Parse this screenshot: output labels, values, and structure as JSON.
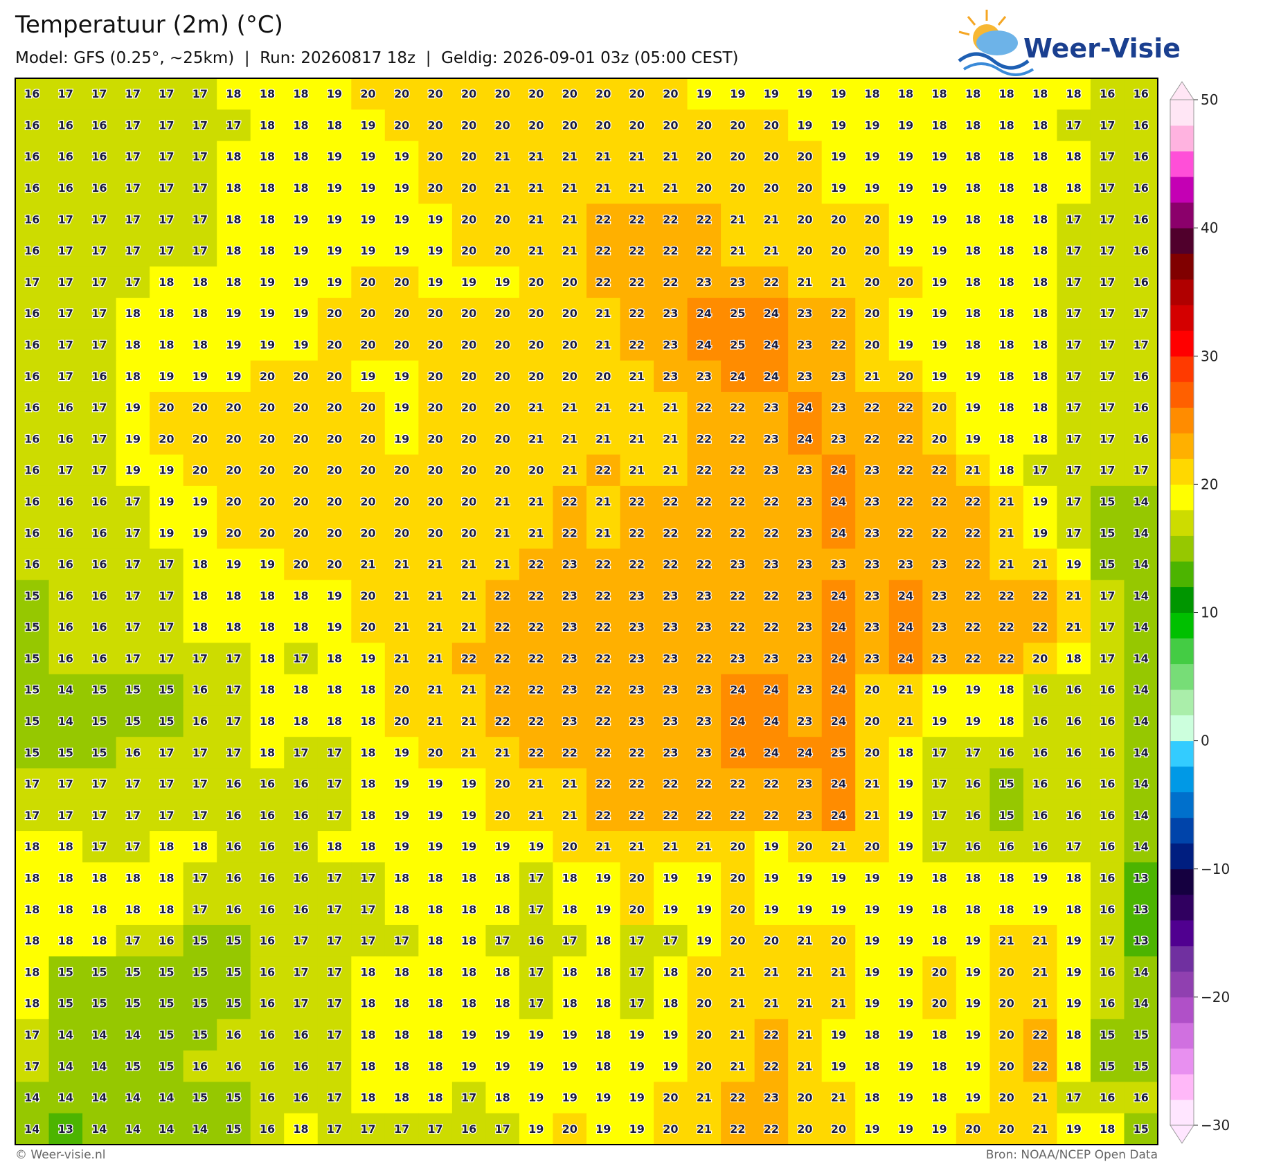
{
  "header": {
    "title": "Temperatuur (2m) (°C)",
    "subtitle": "Model: GFS (0.25°, ~25km)  |  Run: 20260817 18z  |  Geldig: 2026-09-01 03z (05:00 CEST)",
    "logo": "Weer-Visie"
  },
  "grid": {
    "rows": [
      [
        16,
        17,
        17,
        17,
        17,
        17,
        18,
        18,
        18,
        19,
        20,
        20,
        20,
        20,
        20,
        20,
        20,
        20,
        20,
        20,
        19,
        19,
        19,
        19,
        19,
        18,
        18,
        18,
        18,
        18,
        18,
        18,
        16,
        16
      ],
      [
        16,
        16,
        16,
        17,
        17,
        17,
        17,
        18,
        18,
        18,
        19,
        20,
        20,
        20,
        20,
        20,
        20,
        20,
        20,
        20,
        20,
        20,
        20,
        19,
        19,
        19,
        19,
        18,
        18,
        18,
        18,
        17,
        17,
        16
      ],
      [
        16,
        16,
        16,
        17,
        17,
        17,
        18,
        18,
        18,
        19,
        19,
        19,
        20,
        20,
        21,
        21,
        21,
        21,
        21,
        21,
        20,
        20,
        20,
        20,
        19,
        19,
        19,
        19,
        18,
        18,
        18,
        18,
        17,
        16
      ],
      [
        16,
        16,
        16,
        17,
        17,
        17,
        18,
        18,
        18,
        19,
        19,
        19,
        20,
        20,
        21,
        21,
        21,
        21,
        21,
        21,
        20,
        20,
        20,
        20,
        19,
        19,
        19,
        19,
        18,
        18,
        18,
        18,
        17,
        16
      ],
      [
        16,
        17,
        17,
        17,
        17,
        17,
        18,
        18,
        19,
        19,
        19,
        19,
        19,
        20,
        20,
        21,
        21,
        22,
        22,
        22,
        22,
        21,
        21,
        20,
        20,
        20,
        19,
        19,
        18,
        18,
        18,
        17,
        17,
        16
      ],
      [
        16,
        17,
        17,
        17,
        17,
        17,
        18,
        18,
        19,
        19,
        19,
        19,
        19,
        20,
        20,
        21,
        21,
        22,
        22,
        22,
        22,
        21,
        21,
        20,
        20,
        20,
        19,
        19,
        18,
        18,
        18,
        17,
        17,
        16
      ],
      [
        17,
        17,
        17,
        17,
        18,
        18,
        18,
        19,
        19,
        19,
        20,
        20,
        19,
        19,
        19,
        20,
        20,
        22,
        22,
        22,
        23,
        23,
        22,
        21,
        21,
        20,
        20,
        19,
        18,
        18,
        18,
        17,
        17,
        16
      ],
      [
        16,
        17,
        17,
        18,
        18,
        18,
        19,
        19,
        19,
        20,
        20,
        20,
        20,
        20,
        20,
        20,
        20,
        21,
        22,
        23,
        24,
        25,
        24,
        23,
        22,
        20,
        19,
        19,
        18,
        18,
        18,
        17,
        17,
        17
      ],
      [
        16,
        17,
        17,
        18,
        18,
        18,
        19,
        19,
        19,
        20,
        20,
        20,
        20,
        20,
        20,
        20,
        20,
        21,
        22,
        23,
        24,
        25,
        24,
        23,
        22,
        20,
        19,
        19,
        18,
        18,
        18,
        17,
        17,
        17
      ],
      [
        16,
        17,
        16,
        18,
        19,
        19,
        19,
        20,
        20,
        20,
        19,
        19,
        20,
        20,
        20,
        20,
        20,
        20,
        21,
        23,
        23,
        24,
        24,
        23,
        23,
        21,
        20,
        19,
        19,
        18,
        18,
        17,
        17,
        16
      ],
      [
        16,
        16,
        17,
        19,
        20,
        20,
        20,
        20,
        20,
        20,
        20,
        19,
        20,
        20,
        20,
        21,
        21,
        21,
        21,
        21,
        22,
        22,
        23,
        24,
        23,
        22,
        22,
        20,
        19,
        18,
        18,
        17,
        17,
        16
      ],
      [
        16,
        16,
        17,
        19,
        20,
        20,
        20,
        20,
        20,
        20,
        20,
        19,
        20,
        20,
        20,
        21,
        21,
        21,
        21,
        21,
        22,
        22,
        23,
        24,
        23,
        22,
        22,
        20,
        19,
        18,
        18,
        17,
        17,
        16
      ],
      [
        16,
        17,
        17,
        19,
        19,
        20,
        20,
        20,
        20,
        20,
        20,
        20,
        20,
        20,
        20,
        20,
        21,
        22,
        21,
        21,
        22,
        22,
        23,
        23,
        24,
        23,
        22,
        22,
        21,
        18,
        17,
        17,
        17,
        17
      ],
      [
        16,
        16,
        16,
        17,
        19,
        19,
        20,
        20,
        20,
        20,
        20,
        20,
        20,
        20,
        21,
        21,
        22,
        21,
        22,
        22,
        22,
        22,
        22,
        23,
        24,
        23,
        22,
        22,
        22,
        21,
        19,
        17,
        15,
        14
      ],
      [
        16,
        16,
        16,
        17,
        19,
        19,
        20,
        20,
        20,
        20,
        20,
        20,
        20,
        20,
        21,
        21,
        22,
        21,
        22,
        22,
        22,
        22,
        22,
        23,
        24,
        23,
        22,
        22,
        22,
        21,
        19,
        17,
        15,
        14
      ],
      [
        16,
        16,
        16,
        17,
        17,
        18,
        19,
        19,
        20,
        20,
        21,
        21,
        21,
        21,
        21,
        22,
        23,
        22,
        22,
        22,
        22,
        23,
        23,
        23,
        23,
        23,
        23,
        23,
        22,
        21,
        21,
        19,
        15,
        14
      ],
      [
        15,
        16,
        16,
        17,
        17,
        18,
        18,
        18,
        18,
        19,
        20,
        21,
        21,
        21,
        22,
        22,
        23,
        22,
        23,
        23,
        23,
        22,
        22,
        23,
        24,
        23,
        24,
        23,
        22,
        22,
        22,
        21,
        17,
        14
      ],
      [
        15,
        16,
        16,
        17,
        17,
        18,
        18,
        18,
        18,
        19,
        20,
        21,
        21,
        21,
        22,
        22,
        23,
        22,
        23,
        23,
        23,
        22,
        22,
        23,
        24,
        23,
        24,
        23,
        22,
        22,
        22,
        21,
        17,
        14
      ],
      [
        15,
        16,
        16,
        17,
        17,
        17,
        17,
        18,
        17,
        18,
        19,
        21,
        21,
        22,
        22,
        22,
        23,
        22,
        23,
        23,
        22,
        23,
        23,
        23,
        24,
        23,
        24,
        23,
        22,
        22,
        20,
        18,
        17,
        14
      ],
      [
        15,
        14,
        15,
        15,
        15,
        16,
        17,
        18,
        18,
        18,
        18,
        20,
        21,
        21,
        22,
        22,
        23,
        22,
        23,
        23,
        23,
        24,
        24,
        23,
        24,
        20,
        21,
        19,
        19,
        18,
        16,
        16,
        16,
        14
      ],
      [
        15,
        14,
        15,
        15,
        15,
        16,
        17,
        18,
        18,
        18,
        18,
        20,
        21,
        21,
        22,
        22,
        23,
        22,
        23,
        23,
        23,
        24,
        24,
        23,
        24,
        20,
        21,
        19,
        19,
        18,
        16,
        16,
        16,
        14
      ],
      [
        15,
        15,
        15,
        16,
        17,
        17,
        17,
        18,
        17,
        17,
        18,
        19,
        20,
        21,
        21,
        22,
        22,
        22,
        22,
        23,
        23,
        24,
        24,
        24,
        25,
        20,
        18,
        17,
        17,
        16,
        16,
        16,
        16,
        14
      ],
      [
        17,
        17,
        17,
        17,
        17,
        17,
        16,
        16,
        16,
        17,
        18,
        19,
        19,
        19,
        20,
        21,
        21,
        22,
        22,
        22,
        22,
        22,
        22,
        23,
        24,
        21,
        19,
        17,
        16,
        15,
        16,
        16,
        16,
        14
      ],
      [
        17,
        17,
        17,
        17,
        17,
        17,
        16,
        16,
        16,
        17,
        18,
        19,
        19,
        19,
        20,
        21,
        21,
        22,
        22,
        22,
        22,
        22,
        22,
        23,
        24,
        21,
        19,
        17,
        16,
        15,
        16,
        16,
        16,
        14
      ],
      [
        18,
        18,
        17,
        17,
        18,
        18,
        16,
        16,
        16,
        18,
        18,
        19,
        19,
        19,
        19,
        19,
        20,
        21,
        21,
        21,
        21,
        20,
        19,
        20,
        21,
        20,
        19,
        17,
        16,
        16,
        16,
        17,
        16,
        14
      ],
      [
        18,
        18,
        18,
        18,
        18,
        17,
        16,
        16,
        16,
        17,
        17,
        18,
        18,
        18,
        18,
        17,
        18,
        19,
        20,
        19,
        19,
        20,
        19,
        19,
        19,
        19,
        19,
        18,
        18,
        18,
        19,
        18,
        16,
        13
      ],
      [
        18,
        18,
        18,
        18,
        18,
        17,
        16,
        16,
        16,
        17,
        17,
        18,
        18,
        18,
        18,
        17,
        18,
        19,
        20,
        19,
        19,
        20,
        19,
        19,
        19,
        19,
        19,
        18,
        18,
        18,
        19,
        18,
        16,
        13
      ],
      [
        18,
        18,
        18,
        17,
        16,
        15,
        15,
        16,
        17,
        17,
        17,
        17,
        18,
        18,
        17,
        16,
        17,
        18,
        17,
        17,
        19,
        20,
        20,
        21,
        20,
        19,
        19,
        18,
        19,
        21,
        21,
        19,
        17,
        13
      ],
      [
        18,
        15,
        15,
        15,
        15,
        15,
        15,
        16,
        17,
        17,
        18,
        18,
        18,
        18,
        18,
        17,
        18,
        18,
        17,
        18,
        20,
        21,
        21,
        21,
        21,
        19,
        19,
        20,
        19,
        20,
        21,
        19,
        16,
        14
      ],
      [
        18,
        15,
        15,
        15,
        15,
        15,
        15,
        16,
        17,
        17,
        18,
        18,
        18,
        18,
        18,
        17,
        18,
        18,
        17,
        18,
        20,
        21,
        21,
        21,
        21,
        19,
        19,
        20,
        19,
        20,
        21,
        19,
        16,
        14
      ],
      [
        17,
        14,
        14,
        14,
        15,
        15,
        16,
        16,
        16,
        17,
        18,
        18,
        18,
        19,
        19,
        19,
        19,
        18,
        19,
        19,
        20,
        21,
        22,
        21,
        19,
        18,
        19,
        18,
        19,
        20,
        22,
        18,
        15,
        15
      ],
      [
        17,
        14,
        14,
        15,
        15,
        16,
        16,
        16,
        16,
        17,
        18,
        18,
        18,
        19,
        19,
        19,
        19,
        18,
        19,
        19,
        20,
        21,
        22,
        21,
        19,
        18,
        19,
        18,
        19,
        20,
        22,
        18,
        15,
        15
      ],
      [
        14,
        14,
        14,
        14,
        14,
        15,
        15,
        16,
        16,
        17,
        18,
        18,
        18,
        17,
        18,
        19,
        19,
        19,
        19,
        20,
        21,
        22,
        23,
        20,
        21,
        18,
        19,
        18,
        19,
        20,
        21,
        17,
        16,
        16
      ],
      [
        14,
        13,
        14,
        14,
        14,
        14,
        15,
        16,
        18,
        17,
        17,
        17,
        17,
        16,
        17,
        19,
        20,
        19,
        19,
        20,
        21,
        22,
        22,
        20,
        20,
        19,
        19,
        19,
        20,
        20,
        21,
        19,
        18,
        15
      ]
    ]
  },
  "colorbar": {
    "lim": [
      -30,
      50
    ],
    "colors": [
      "#ffe6ff",
      "#ffb8f8",
      "#e890f0",
      "#d070e0",
      "#b050c8",
      "#9040b0",
      "#7030a0",
      "#500090",
      "#300060",
      "#150040",
      "#001e80",
      "#0044aa",
      "#0070cc",
      "#0099e6",
      "#33ccff",
      "#ccffdd",
      "#aaeeaa",
      "#77dd77",
      "#44cc44",
      "#00c000",
      "#009600",
      "#4cb400",
      "#96c800",
      "#cddc00",
      "#ffff00",
      "#ffd800",
      "#ffb000",
      "#ff8c00",
      "#ff6000",
      "#ff3a00",
      "#ff0000",
      "#d40000",
      "#b00000",
      "#800000",
      "#50002c",
      "#8b006b",
      "#c400b4",
      "#ff4fd8",
      "#ffb3e0",
      "#ffe6f5"
    ],
    "ticks": [
      50,
      40,
      30,
      20,
      10,
      0,
      {
        "value": -10,
        "label": "−10"
      },
      {
        "value": -20,
        "label": "−20"
      },
      {
        "value": -30,
        "label": "−30"
      }
    ]
  },
  "footer": {
    "left": "© Weer-visie.nl",
    "right": "Bron: NOAA/NCEP Open Data"
  }
}
